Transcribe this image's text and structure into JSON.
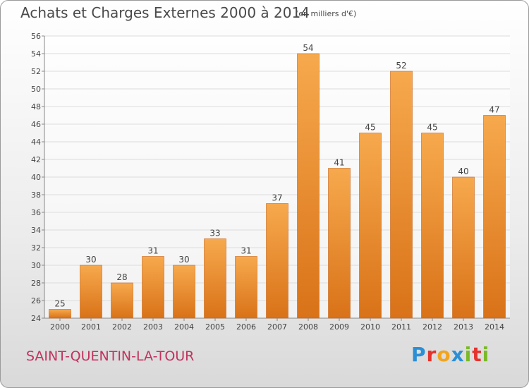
{
  "title": "Achats et Charges Externes 2000 à 2014",
  "subtitle": "(en milliers d'€)",
  "commune": "SAINT-QUENTIN-LA-TOUR",
  "logo": {
    "text": "Proxiti",
    "letters": [
      {
        "ch": "P",
        "color": "#2a8fd6"
      },
      {
        "ch": "r",
        "color": "#e5322d"
      },
      {
        "ch": "o",
        "color": "#f2a51c"
      },
      {
        "ch": "x",
        "color": "#2a8fd6"
      },
      {
        "ch": "i",
        "color": "#7ab929"
      },
      {
        "ch": "t",
        "color": "#e5322d"
      },
      {
        "ch": "i",
        "color": "#7ab929"
      }
    ]
  },
  "colors": {
    "bar_light": "#f7a94d",
    "bar_dark": "#d97218",
    "grid": "#dcdcdc",
    "axis_text": "#444444"
  },
  "chart_data": {
    "type": "bar",
    "categories": [
      "2000",
      "2001",
      "2002",
      "2003",
      "2004",
      "2005",
      "2006",
      "2007",
      "2008",
      "2009",
      "2010",
      "2011",
      "2012",
      "2013",
      "2014"
    ],
    "values": [
      25,
      30,
      28,
      31,
      30,
      33,
      31,
      37,
      54,
      41,
      45,
      52,
      45,
      40,
      47
    ],
    "ylim": [
      24,
      56
    ],
    "yticks": [
      24,
      26,
      28,
      30,
      32,
      34,
      36,
      38,
      40,
      42,
      44,
      46,
      48,
      50,
      52,
      54,
      56
    ],
    "grid": true,
    "xlabel": "",
    "ylabel": ""
  }
}
